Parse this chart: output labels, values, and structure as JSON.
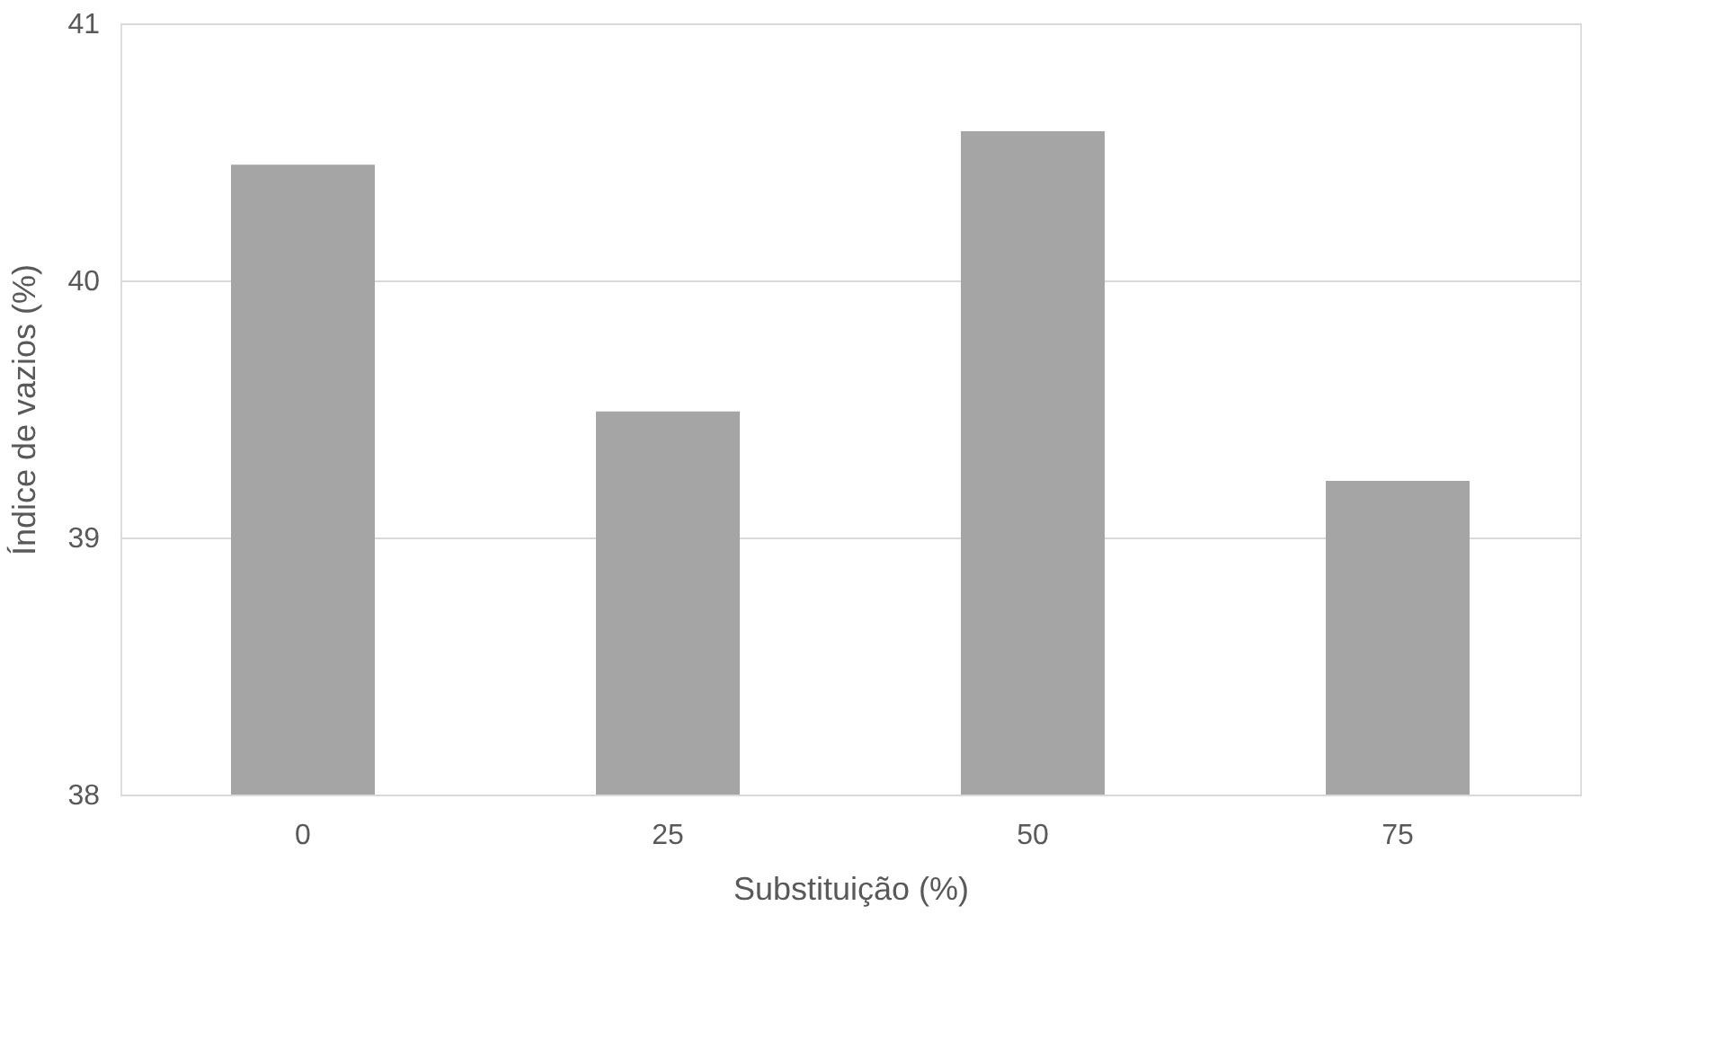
{
  "chart_data": {
    "type": "bar",
    "xlabel": "Substituição (%)",
    "ylabel": "Índice de vazios (%)",
    "categories": [
      "0",
      "25",
      "50",
      "75"
    ],
    "values": [
      40.45,
      39.49,
      40.58,
      39.22
    ],
    "color": "#a5a5a5",
    "ylim": [
      38,
      41
    ],
    "yticks": [
      38,
      39,
      40,
      41
    ],
    "grid": "y"
  }
}
